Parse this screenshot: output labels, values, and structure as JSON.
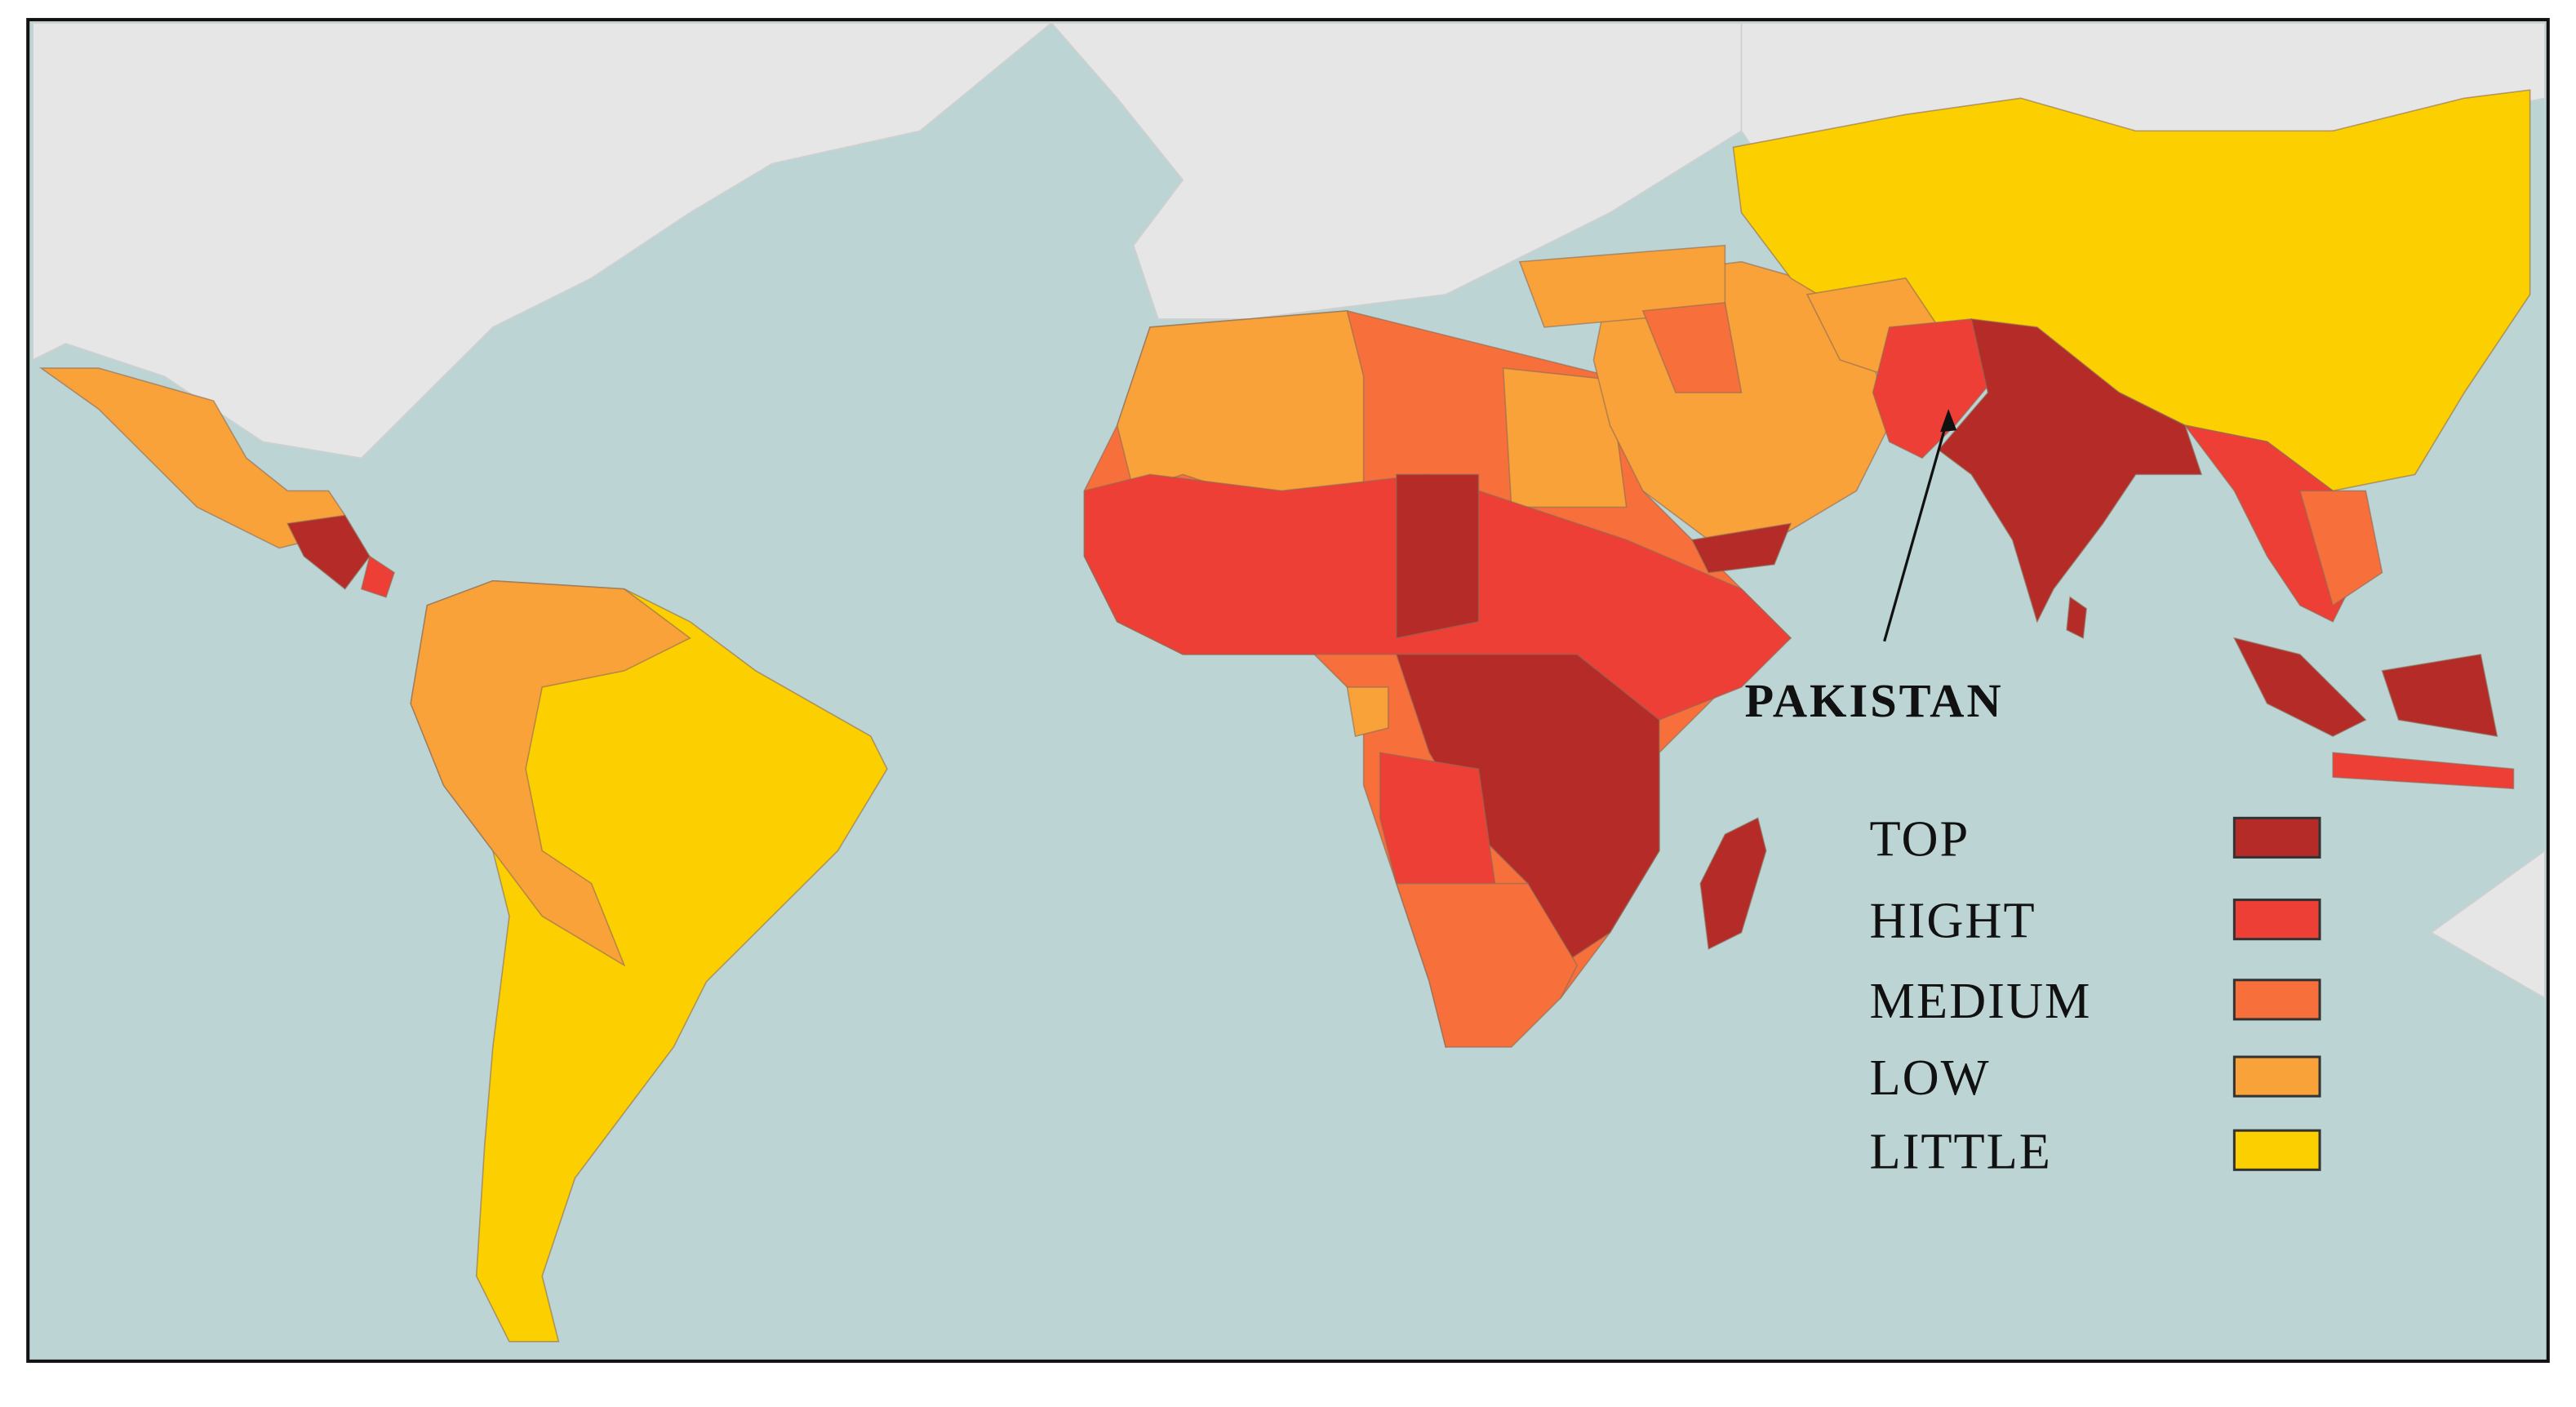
{
  "map": {
    "annotation": "PAKISTAN",
    "legend": [
      {
        "label": "TOP",
        "color": "#b52b28"
      },
      {
        "label": "HIGHT",
        "color": "#ee3f37"
      },
      {
        "label": "MEDIUM",
        "color": "#f7703c"
      },
      {
        "label": "LOW",
        "color": "#f9a23a"
      },
      {
        "label": "LITTLE",
        "color": "#fccf00"
      }
    ]
  }
}
